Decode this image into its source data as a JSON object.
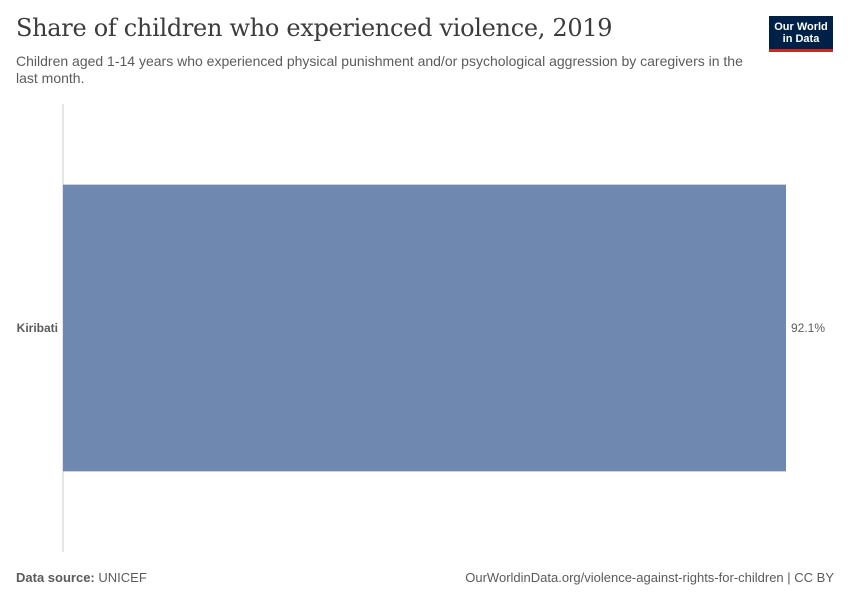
{
  "header": {
    "title": "Share of children who experienced violence, 2019",
    "subtitle": "Children aged 1-14 years who experienced physical punishment and/or psychological aggression by caregivers in the last month."
  },
  "logo": {
    "line1": "Our World",
    "line2": "in Data"
  },
  "footer": {
    "source_label": "Data source:",
    "source_value": "UNICEF",
    "link": "OurWorldinData.org/violence-against-rights-for-children | CC BY"
  },
  "colors": {
    "bar": "#6f88b0",
    "axis": "#cccccc",
    "logo_bg": "#002147",
    "logo_accent": "#ce261e"
  },
  "chart_data": {
    "type": "bar",
    "orientation": "horizontal",
    "categories": [
      "Kiribati"
    ],
    "values": [
      92.1
    ],
    "value_labels": [
      "92.1%"
    ],
    "xlim": [
      0,
      92.1
    ],
    "grid": false
  }
}
